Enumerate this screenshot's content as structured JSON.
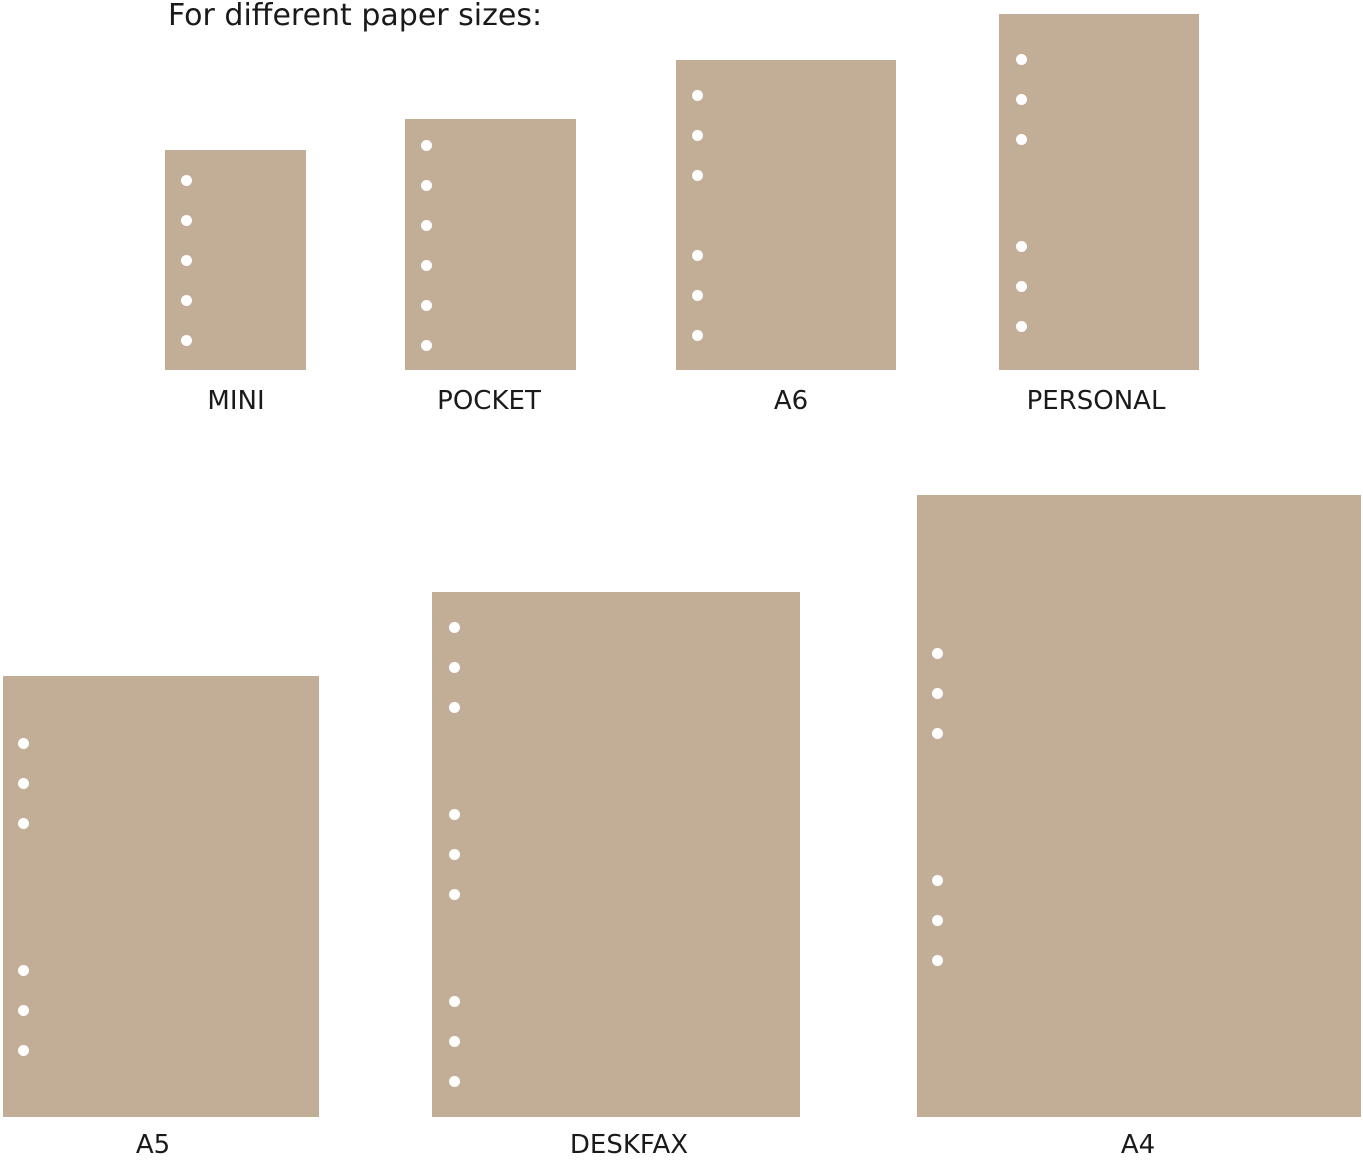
{
  "heading": "For different paper sizes:",
  "sheet_color": "#c2ae96",
  "hole_color": "#ffffff",
  "sizes": [
    {
      "label": "MINI",
      "holes": 5
    },
    {
      "label": "POCKET",
      "holes": 6
    },
    {
      "label": "A6",
      "holes": 6
    },
    {
      "label": "PERSONAL",
      "holes": 6
    },
    {
      "label": "A5",
      "holes": 6
    },
    {
      "label": "DESKFAX",
      "holes": 9
    },
    {
      "label": "A4",
      "holes": 6
    }
  ]
}
